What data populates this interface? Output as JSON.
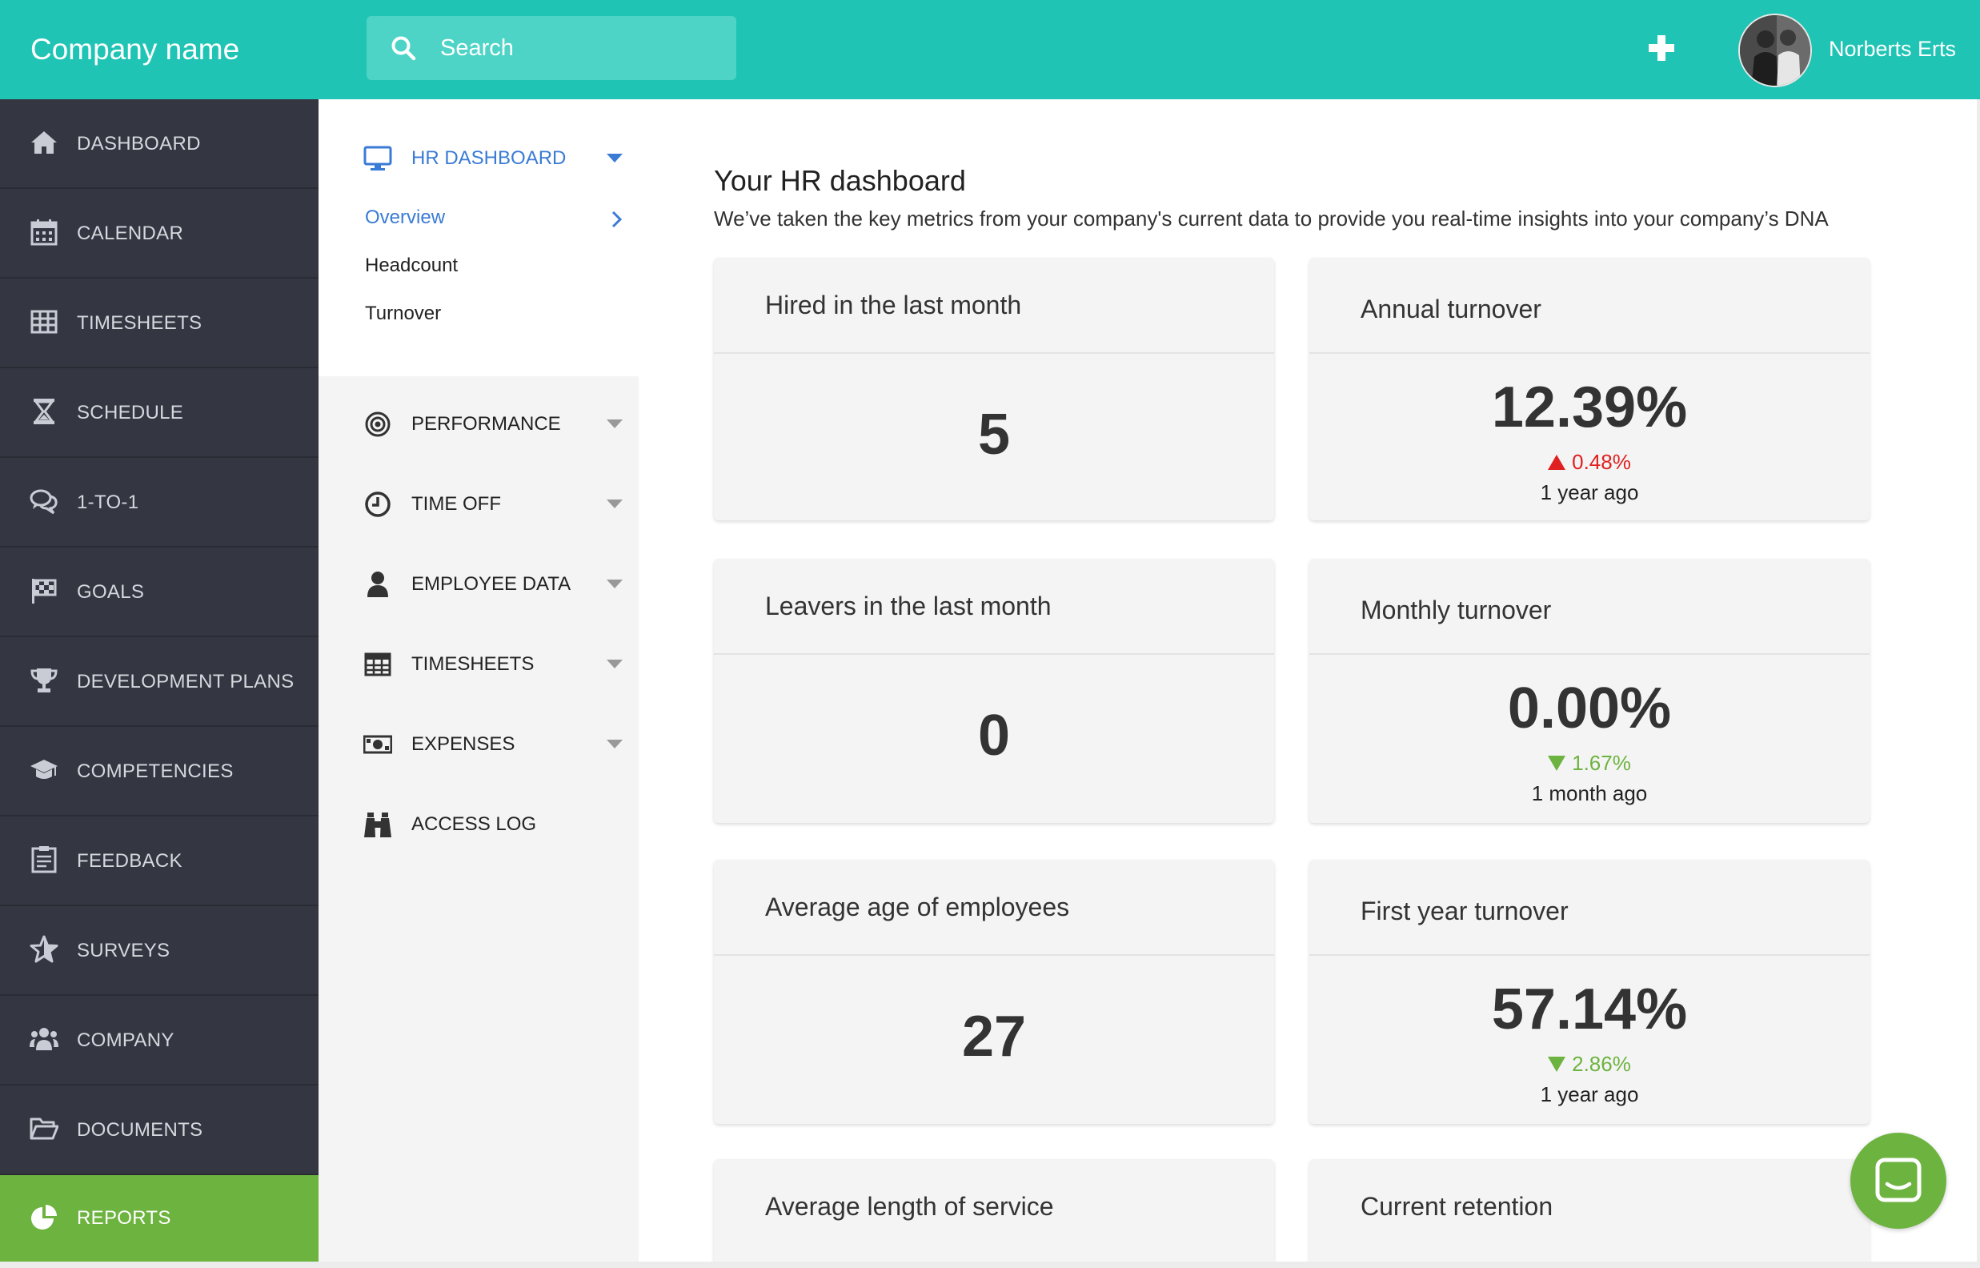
{
  "header": {
    "company_name": "Company name",
    "search_placeholder": "Search",
    "user_name": "Norberts Erts"
  },
  "sidebar": {
    "items": [
      {
        "label": "DASHBOARD",
        "icon": "home-icon"
      },
      {
        "label": "CALENDAR",
        "icon": "calendar-icon"
      },
      {
        "label": "TIMESHEETS",
        "icon": "table-icon"
      },
      {
        "label": "SCHEDULE",
        "icon": "hourglass-icon"
      },
      {
        "label": "1-TO-1",
        "icon": "chat-bubbles-icon"
      },
      {
        "label": "GOALS",
        "icon": "flag-icon"
      },
      {
        "label": "DEVELOPMENT PLANS",
        "icon": "trophy-icon"
      },
      {
        "label": "COMPETENCIES",
        "icon": "graduation-cap-icon"
      },
      {
        "label": "FEEDBACK",
        "icon": "clipboard-icon"
      },
      {
        "label": "SURVEYS",
        "icon": "star-icon"
      },
      {
        "label": "COMPANY",
        "icon": "users-icon"
      },
      {
        "label": "DOCUMENTS",
        "icon": "folder-icon"
      },
      {
        "label": "REPORTS",
        "icon": "pie-chart-icon",
        "active": true
      }
    ]
  },
  "subnav": {
    "hr_dashboard": "HR DASHBOARD",
    "links": [
      "Overview",
      "Headcount",
      "Turnover"
    ],
    "sections": [
      "PERFORMANCE",
      "TIME OFF",
      "EMPLOYEE DATA",
      "TIMESHEETS",
      "EXPENSES",
      "ACCESS LOG"
    ]
  },
  "main": {
    "title": "Your HR dashboard",
    "subtitle": "We’ve taken the key metrics from your company's current data to provide you real-time insights into your company’s DNA",
    "cards": [
      {
        "title": "Hired in the last month",
        "value": "5"
      },
      {
        "title": "Annual turnover",
        "value": "12.39%",
        "delta": "0.48%",
        "direction": "up",
        "when": "1 year ago"
      },
      {
        "title": "Leavers in the last month",
        "value": "0"
      },
      {
        "title": "Monthly turnover",
        "value": "0.00%",
        "delta": "1.67%",
        "direction": "down",
        "when": "1 month ago"
      },
      {
        "title": "Average age of employees",
        "value": "27"
      },
      {
        "title": "First year turnover",
        "value": "57.14%",
        "delta": "2.86%",
        "direction": "down",
        "when": "1 year ago"
      },
      {
        "title": "Average length of service"
      },
      {
        "title": "Current retention"
      }
    ]
  },
  "colors": {
    "brand_teal": "#1fc4b4",
    "sidebar_dark": "#343641",
    "active_green": "#6db33f",
    "link_blue": "#3a7bd5",
    "delta_up_red": "#e02020",
    "delta_down_green": "#6db33f"
  }
}
